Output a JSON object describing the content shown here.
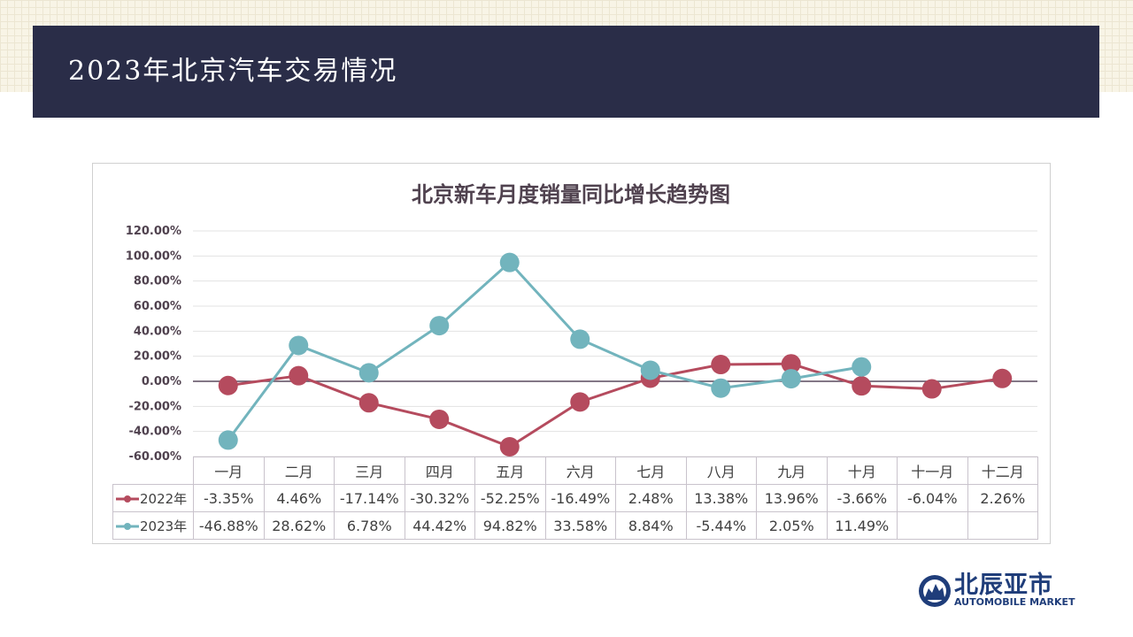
{
  "header": {
    "title": "2023年北京汽车交易情况"
  },
  "chart_data": {
    "type": "line",
    "title": "北京新车月度销量同比增长趋势图",
    "categories": [
      "一月",
      "二月",
      "三月",
      "四月",
      "五月",
      "六月",
      "七月",
      "八月",
      "九月",
      "十月",
      "十一月",
      "十二月"
    ],
    "ylim": [
      -60,
      120
    ],
    "yticks": [
      "120.00%",
      "100.00%",
      "80.00%",
      "60.00%",
      "40.00%",
      "20.00%",
      "0.00%",
      "-20.00%",
      "-40.00%",
      "-60.00%"
    ],
    "series": [
      {
        "name": "2022年",
        "color": "#b54b5e",
        "values": [
          -3.35,
          4.46,
          -17.14,
          -30.32,
          -52.25,
          -16.49,
          2.48,
          13.38,
          13.96,
          -3.66,
          -6.04,
          2.26
        ],
        "labels": [
          "-3.35%",
          "4.46%",
          "-17.14%",
          "-30.32%",
          "-52.25%",
          "-16.49%",
          "2.48%",
          "13.38%",
          "13.96%",
          "-3.66%",
          "-6.04%",
          "2.26%"
        ]
      },
      {
        "name": "2023年",
        "color": "#72b4bd",
        "values": [
          -46.88,
          28.62,
          6.78,
          44.42,
          94.82,
          33.58,
          8.84,
          -5.44,
          2.05,
          11.49,
          null,
          null
        ],
        "labels": [
          "-46.88%",
          "28.62%",
          "6.78%",
          "44.42%",
          "94.82%",
          "33.58%",
          "8.84%",
          "-5.44%",
          "2.05%",
          "11.49%",
          "",
          ""
        ]
      }
    ],
    "grid": true,
    "legend": "table-left"
  },
  "brand": {
    "name_cn": "北辰亚市",
    "name_en": "AUTOMOBILE MARKET"
  }
}
